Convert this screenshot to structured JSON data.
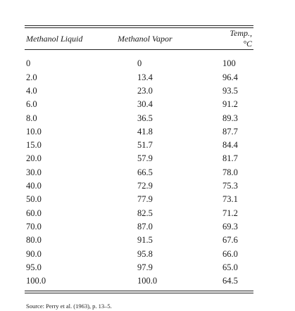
{
  "table": {
    "headers": [
      "Methanol Liquid",
      "Methanol Vapor",
      "Temp., °C"
    ],
    "rows": [
      [
        "0",
        "0",
        "100"
      ],
      [
        "2.0",
        "13.4",
        "96.4"
      ],
      [
        "4.0",
        "23.0",
        "93.5"
      ],
      [
        "6.0",
        "30.4",
        "91.2"
      ],
      [
        "8.0",
        "36.5",
        "89.3"
      ],
      [
        "10.0",
        "41.8",
        "87.7"
      ],
      [
        "15.0",
        "51.7",
        "84.4"
      ],
      [
        "20.0",
        "57.9",
        "81.7"
      ],
      [
        "30.0",
        "66.5",
        "78.0"
      ],
      [
        "40.0",
        "72.9",
        "75.3"
      ],
      [
        "50.0",
        "77.9",
        "73.1"
      ],
      [
        "60.0",
        "82.5",
        "71.2"
      ],
      [
        "70.0",
        "87.0",
        "69.3"
      ],
      [
        "80.0",
        "91.5",
        "67.6"
      ],
      [
        "90.0",
        "95.8",
        "66.0"
      ],
      [
        "95.0",
        "97.9",
        "65.0"
      ],
      [
        "100.0",
        "100.0",
        "64.5"
      ]
    ]
  },
  "source": "Source: Perry et al. (1963), p. 13–5."
}
